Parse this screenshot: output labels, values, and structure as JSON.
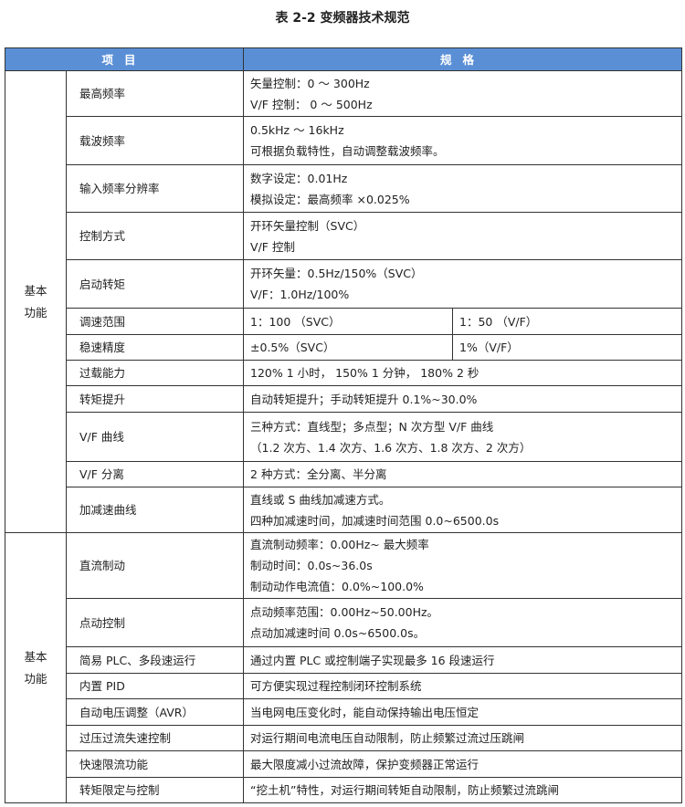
{
  "title": "表 2-2 变频器技术规范",
  "header": {
    "item": "项目",
    "spec": "规格"
  },
  "groups": [
    {
      "label": [
        "基本",
        "功能"
      ],
      "rows": [
        {
          "item": "最高频率",
          "spec": [
            "矢量控制：0 ～ 300Hz",
            "V/F 控制： 0 ～ 500Hz"
          ],
          "h": 50
        },
        {
          "item": "载波频率",
          "spec": [
            "0.5kHz ～ 16kHz",
            "可根据负载特性，自动调整载波频率。"
          ],
          "h": 53
        },
        {
          "item": "输入频率分辨率",
          "spec": [
            "数字设定：0.01Hz",
            "模拟设定：最高频率 ×0.025%"
          ],
          "h": 52
        },
        {
          "item": "控制方式",
          "spec": [
            "开环矢量控制（SVC）",
            "V/F 控制"
          ],
          "h": 52
        },
        {
          "item": "启动转矩",
          "spec": [
            "开环矢量：0.5Hz/150%（SVC）",
            "V/F：1.0Hz/100%"
          ],
          "h": 53
        },
        {
          "item": "调速范围",
          "spec": [
            "1：100 （SVC）"
          ],
          "spec2": "1：50 （V/F）",
          "h": 29
        },
        {
          "item": "稳速精度",
          "spec": [
            "±0.5%（SVC）"
          ],
          "spec2": "1%（V/F）",
          "h": 28
        },
        {
          "item": "过载能力",
          "spec": [
            "120% 1 小时， 150% 1 分钟， 180% 2 秒"
          ],
          "h": 28
        },
        {
          "item": "转矩提升",
          "spec": [
            "自动转矩提升；手动转矩提升 0.1%~30.0%"
          ],
          "h": 29
        },
        {
          "item": "V/F 曲线",
          "spec": [
            "三种方式：直线型；多点型；N 次方型 V/F 曲线",
            "（1.2 次方、1.4 次方、1.6 次方、1.8 次方、2 次方）"
          ],
          "h": 54
        },
        {
          "item": "V/F 分离",
          "spec": [
            "2 种方式：全分离、半分离"
          ],
          "h": 28
        },
        {
          "item": "加减速曲线",
          "spec": [
            "直线或 S 曲线加减速方式。",
            "四种加减速时间，加减速时间范围 0.0~6500.0s"
          ],
          "h": 50
        }
      ]
    },
    {
      "label": [
        "基本",
        "功能"
      ],
      "rows": [
        {
          "item": "直流制动",
          "spec": [
            "直流制动频率：0.00Hz~ 最大频率",
            "制动时间：0.0s~36.0s",
            "制动动作电流值：0.0%~100.0%"
          ],
          "h": 72
        },
        {
          "item": "点动控制",
          "spec": [
            "点动频率范围：0.00Hz~50.00Hz。",
            "点动加减速时间 0.0s~6500.0s。"
          ],
          "h": 53
        },
        {
          "item": "简易 PLC、多段速运行",
          "spec": [
            "通过内置 PLC 或控制端子实现最多 16 段速运行"
          ],
          "h": 29
        },
        {
          "item": "内置 PID",
          "spec": [
            "可方便实现过程控制闭环控制系统"
          ],
          "h": 28
        },
        {
          "item": "自动电压调整（AVR）",
          "spec": [
            "当电网电压变化时，能自动保持输出电压恒定"
          ],
          "h": 29
        },
        {
          "item": "过压过流失速控制",
          "spec": [
            "对运行期间电流电压自动限制，防止频繁过流过压跳闸"
          ],
          "h": 28
        },
        {
          "item": "快速限流功能",
          "spec": [
            "最大限度减小过流故障，保护变频器正常运行"
          ],
          "h": 29
        },
        {
          "item": "转矩限定与控制",
          "spec": [
            "“挖土机”特性，对运行期间转矩自动限制，防止频繁过流跳闸"
          ],
          "h": 28
        }
      ]
    }
  ]
}
